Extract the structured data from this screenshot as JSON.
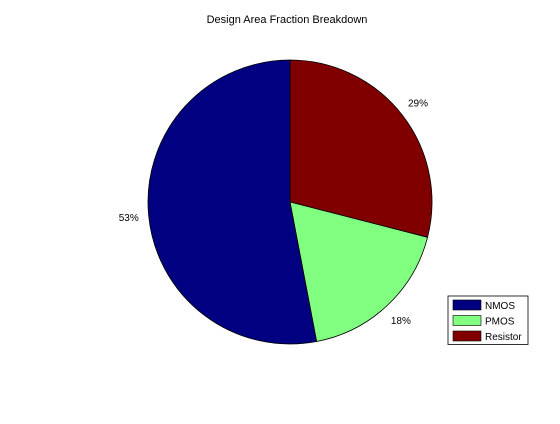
{
  "chart_data": {
    "type": "pie",
    "title": "Design Area Fraction Breakdown",
    "slices": [
      {
        "label": "Resistor",
        "value": 29,
        "display": "29%",
        "color": "#800000"
      },
      {
        "label": "PMOS",
        "value": 18,
        "display": "18%",
        "color": "#80ff80"
      },
      {
        "label": "NMOS",
        "value": 53,
        "display": "53%",
        "color": "#000080"
      }
    ],
    "legend": {
      "position": "bottom-right",
      "entries": [
        "NMOS",
        "PMOS",
        "Resistor"
      ]
    }
  }
}
